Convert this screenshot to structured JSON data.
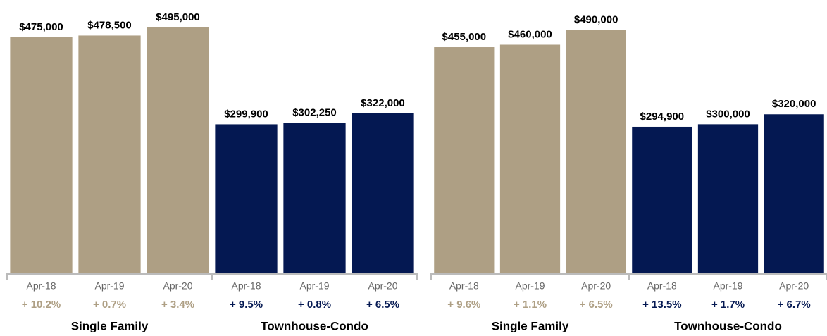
{
  "chart_data": [
    {
      "type": "bar",
      "ylim": [
        0,
        550000
      ],
      "groups": [
        {
          "name": "Single Family",
          "color": "#ae9f84",
          "categories": [
            "Apr-18",
            "Apr-19",
            "Apr-20"
          ],
          "values": [
            475000,
            478500,
            495000
          ],
          "value_labels": [
            "$475,000",
            "$478,500",
            "$495,000"
          ],
          "changes": [
            10.2,
            0.7,
            3.4
          ],
          "change_labels": [
            "+ 10.2%",
            "+ 0.7%",
            "+ 3.4%"
          ]
        },
        {
          "name": "Townhouse-Condo",
          "color": "#041852",
          "categories": [
            "Apr-18",
            "Apr-19",
            "Apr-20"
          ],
          "values": [
            299900,
            302250,
            322000
          ],
          "value_labels": [
            "$299,900",
            "$302,250",
            "$322,000"
          ],
          "changes": [
            9.5,
            0.8,
            6.5
          ],
          "change_labels": [
            "+ 9.5%",
            "+ 0.8%",
            "+ 6.5%"
          ]
        }
      ]
    },
    {
      "type": "bar",
      "ylim": [
        0,
        550000
      ],
      "groups": [
        {
          "name": "Single Family",
          "color": "#ae9f84",
          "categories": [
            "Apr-18",
            "Apr-19",
            "Apr-20"
          ],
          "values": [
            455000,
            460000,
            490000
          ],
          "value_labels": [
            "$455,000",
            "$460,000",
            "$490,000"
          ],
          "changes": [
            9.6,
            1.1,
            6.5
          ],
          "change_labels": [
            "+ 9.6%",
            "+ 1.1%",
            "+ 6.5%"
          ]
        },
        {
          "name": "Townhouse-Condo",
          "color": "#041852",
          "categories": [
            "Apr-18",
            "Apr-19",
            "Apr-20"
          ],
          "values": [
            294900,
            300000,
            320000
          ],
          "value_labels": [
            "$294,900",
            "$300,000",
            "$320,000"
          ],
          "changes": [
            13.5,
            1.7,
            6.7
          ],
          "change_labels": [
            "+ 13.5%",
            "+ 1.7%",
            "+ 6.7%"
          ]
        }
      ]
    }
  ]
}
